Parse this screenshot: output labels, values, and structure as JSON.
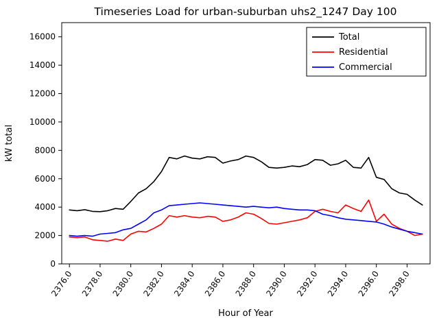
{
  "figure": {
    "background": "#ffffff"
  },
  "chart_data": {
    "type": "line",
    "title": "Timeseries Load for urban-suburban uhs2_1247  Day 100",
    "xlabel": "Hour of Year",
    "ylabel": "kW total",
    "grid": false,
    "legend_position": "upper right",
    "xlim": [
      2375.5,
      2399.5
    ],
    "ylim": [
      0,
      17000
    ],
    "x_ticks": [
      2376,
      2378,
      2380,
      2382,
      2384,
      2386,
      2388,
      2390,
      2392,
      2394,
      2396,
      2398
    ],
    "x_tick_labels": [
      "2376.0",
      "2378.0",
      "2380.0",
      "2382.0",
      "2384.0",
      "2386.0",
      "2388.0",
      "2390.0",
      "2392.0",
      "2394.0",
      "2396.0",
      "2398.0"
    ],
    "y_ticks": [
      0,
      2000,
      4000,
      6000,
      8000,
      10000,
      12000,
      14000,
      16000
    ],
    "y_tick_labels": [
      "0",
      "2000",
      "4000",
      "6000",
      "8000",
      "10000",
      "12000",
      "14000",
      "16000"
    ],
    "x": [
      2376.0,
      2376.5,
      2377.0,
      2377.5,
      2378.0,
      2378.5,
      2379.0,
      2379.5,
      2380.0,
      2380.5,
      2381.0,
      2381.5,
      2382.0,
      2382.5,
      2383.0,
      2383.5,
      2384.0,
      2384.5,
      2385.0,
      2385.5,
      2386.0,
      2386.5,
      2387.0,
      2387.5,
      2388.0,
      2388.5,
      2389.0,
      2389.5,
      2390.0,
      2390.5,
      2391.0,
      2391.5,
      2392.0,
      2392.5,
      2393.0,
      2393.5,
      2394.0,
      2394.5,
      2395.0,
      2395.5,
      2396.0,
      2396.5,
      2397.0,
      2397.5,
      2398.0,
      2398.5,
      2399.0
    ],
    "series": [
      {
        "name": "Total",
        "color": "#000000",
        "values": [
          3800,
          3750,
          3820,
          3700,
          3680,
          3750,
          3900,
          3850,
          4400,
          5000,
          5300,
          5800,
          6500,
          7500,
          7400,
          7600,
          7450,
          7400,
          7550,
          7500,
          7100,
          7250,
          7350,
          7600,
          7500,
          7200,
          6800,
          6750,
          6800,
          6900,
          6850,
          7000,
          7350,
          7300,
          6950,
          7050,
          7300,
          6800,
          6750,
          7500,
          6100,
          5950,
          5300,
          5000,
          4900,
          4500,
          4150
        ]
      },
      {
        "name": "Residential",
        "color": "#ff0000",
        "values": [
          1900,
          1850,
          1900,
          1700,
          1650,
          1600,
          1750,
          1650,
          2100,
          2300,
          2250,
          2500,
          2800,
          3400,
          3300,
          3400,
          3300,
          3250,
          3350,
          3300,
          3000,
          3100,
          3300,
          3600,
          3500,
          3200,
          2850,
          2800,
          2900,
          3000,
          3100,
          3250,
          3700,
          3850,
          3700,
          3600,
          4150,
          3900,
          3700,
          4500,
          3000,
          3500,
          2800,
          2500,
          2300,
          2000,
          2100
        ]
      },
      {
        "name": "Commercial",
        "color": "#0000ff",
        "values": [
          2000,
          1950,
          2000,
          1950,
          2100,
          2150,
          2200,
          2400,
          2500,
          2800,
          3100,
          3600,
          3800,
          4100,
          4150,
          4200,
          4250,
          4300,
          4250,
          4200,
          4150,
          4100,
          4050,
          4000,
          4050,
          4000,
          3950,
          4000,
          3900,
          3850,
          3800,
          3800,
          3750,
          3500,
          3400,
          3250,
          3150,
          3100,
          3050,
          3000,
          2950,
          2800,
          2600,
          2450,
          2300,
          2200,
          2100
        ]
      }
    ]
  }
}
